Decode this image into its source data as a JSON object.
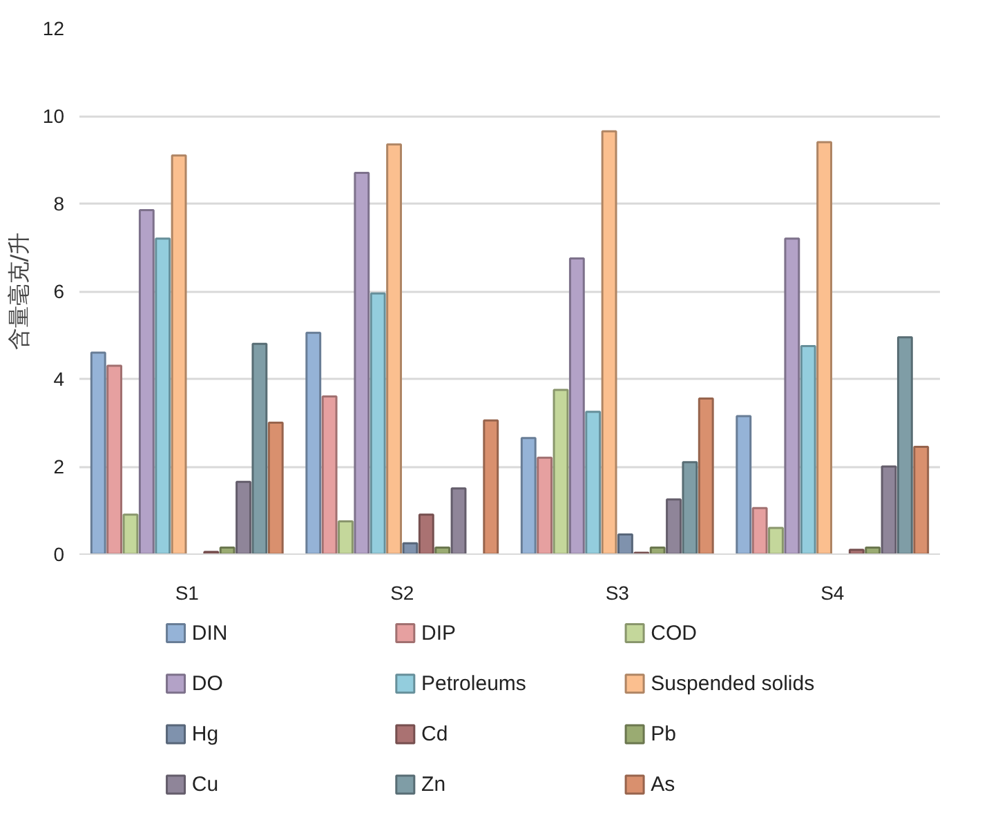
{
  "chart_data": {
    "type": "bar",
    "ylabel": "含量毫克/升",
    "categories": [
      "S1",
      "S2",
      "S3",
      "S4"
    ],
    "ylim": [
      0,
      12
    ],
    "yticks": [
      0,
      2,
      4,
      6,
      8,
      10,
      12
    ],
    "grid": "y",
    "legend": "bottom",
    "series": [
      {
        "name": "DIN",
        "color": "#95b3d7",
        "values": [
          4.6,
          5.05,
          2.65,
          3.15
        ]
      },
      {
        "name": "DIP",
        "color": "#e6a0a0",
        "values": [
          4.3,
          3.6,
          2.2,
          1.05
        ]
      },
      {
        "name": "COD",
        "color": "#c4d79b",
        "values": [
          0.9,
          0.75,
          3.75,
          0.6
        ]
      },
      {
        "name": "DO",
        "color": "#b3a2c7",
        "values": [
          7.85,
          8.7,
          6.75,
          7.2
        ]
      },
      {
        "name": "Petroleums",
        "color": "#93cddd",
        "values": [
          7.2,
          5.95,
          3.25,
          4.75
        ]
      },
      {
        "name": "Suspended solids",
        "color": "#fbbf8f",
        "values": [
          9.1,
          9.35,
          9.65,
          9.4
        ]
      },
      {
        "name": "Hg",
        "color": "#7f92ad",
        "values": [
          null,
          0.25,
          0.45,
          null
        ]
      },
      {
        "name": "Cd",
        "color": "#aa7272",
        "values": [
          0.05,
          0.9,
          0.03,
          0.1
        ]
      },
      {
        "name": "Pb",
        "color": "#9aab72",
        "values": [
          0.15,
          0.15,
          0.15,
          0.15
        ]
      },
      {
        "name": "Cu",
        "color": "#8f8599",
        "values": [
          1.65,
          1.5,
          1.25,
          2.0
        ]
      },
      {
        "name": "Zn",
        "color": "#7f9da6",
        "values": [
          4.8,
          null,
          2.1,
          4.95
        ]
      },
      {
        "name": "As",
        "color": "#d9906e",
        "values": [
          3.0,
          3.05,
          3.55,
          2.45
        ]
      }
    ]
  }
}
